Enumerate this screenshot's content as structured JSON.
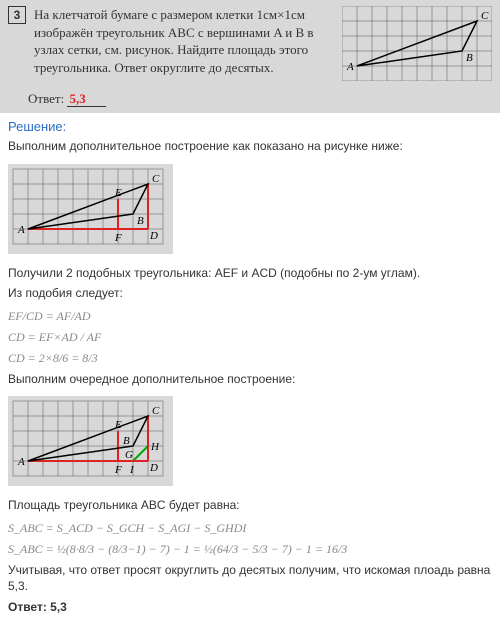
{
  "problem": {
    "number": "3",
    "text": "На клетчатой бумаге с размером клетки 1см×1см изображён треугольник ABC с вершинами A и B в узлах сетки, см. рисунок. Найдите площадь этого треугольника. Ответ округлите до десятых.",
    "answer_label": "Ответ:",
    "answer_value": "5,3"
  },
  "solution": {
    "title": "Решение:",
    "step1": "Выполним дополнительное построение как показано на рисунке ниже:",
    "step2": "Получили 2 подобных треугольника: AEF и ACD (подобны по 2-ум углам).",
    "step3": "Из подобия следует:",
    "formula1": "EF/CD = AF/AD",
    "formula2": "CD = EF×AD / AF",
    "formula3": "CD = 2×8/6 = 8/3",
    "step4": "Выполним очередное дополнительное построение:",
    "step5": "Площадь треугольника ABC будет равна:",
    "formula4": "S_ABC = S_ACD − S_GCH − S_AGI − S_GHDI",
    "formula5": "S_ABC = ½(8·8/3 − (8/3−1) − 7) − 1 = ½(64/3 − 5/3 − 7) − 1 = 16/3",
    "step6": "Учитывая, что ответ просят округлить до десятых получим, что искомая плоадь равна 5,3.",
    "final_label": "Ответ:",
    "final_value": "5,3"
  },
  "grid": {
    "cell": 15,
    "cols": 10,
    "rows": 5,
    "line_color": "#555",
    "bg": "#d8d8d8",
    "red": "#d22",
    "green": "#0a0",
    "label_font": "italic 11px Times New Roman"
  },
  "header_diagram": {
    "A": [
      1,
      4
    ],
    "B": [
      8,
      3
    ],
    "C": [
      9,
      1
    ],
    "labels": {
      "A": "A",
      "B": "B",
      "C": "C"
    }
  },
  "diagram2": {
    "A": [
      1,
      4
    ],
    "B": [
      8,
      3
    ],
    "C": [
      9,
      1
    ],
    "D": [
      9,
      4
    ],
    "E": [
      7,
      2
    ],
    "F": [
      7,
      4
    ],
    "labels": {
      "A": "A",
      "B": "B",
      "C": "C",
      "D": "D",
      "E": "E",
      "F": "F"
    }
  },
  "diagram3": {
    "A": [
      1,
      4
    ],
    "B": [
      8,
      3
    ],
    "C": [
      9,
      1
    ],
    "D": [
      9,
      4
    ],
    "E": [
      7,
      2
    ],
    "F": [
      7,
      4
    ],
    "G": [
      8,
      4
    ],
    "H": [
      9,
      3
    ],
    "I": [
      8,
      4
    ],
    "labels": {
      "A": "A",
      "B": "B",
      "C": "C",
      "D": "D",
      "E": "E",
      "F": "F",
      "G": "G",
      "H": "H",
      "I": "I"
    }
  }
}
